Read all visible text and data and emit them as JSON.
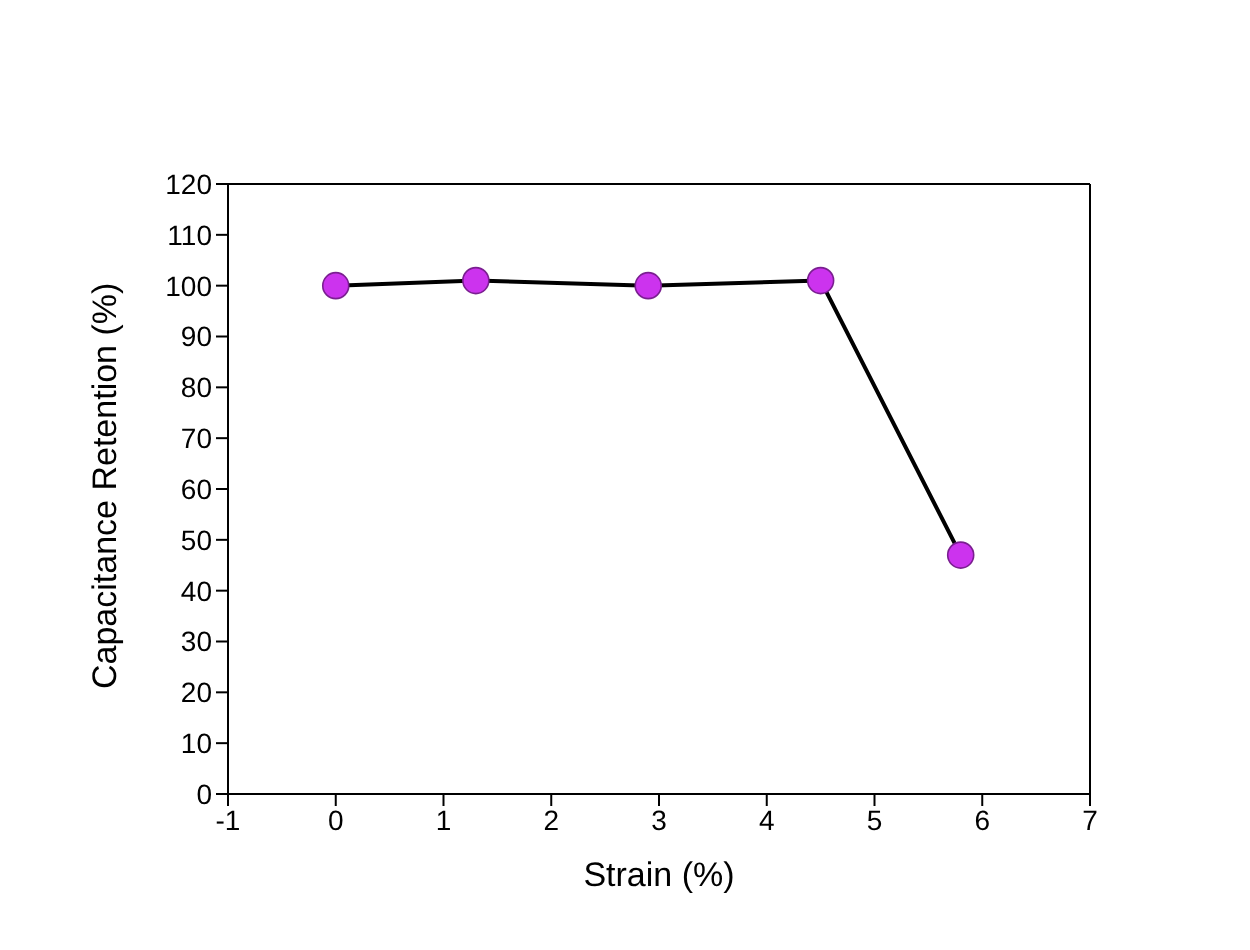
{
  "chart_data": {
    "type": "line",
    "xlabel": "Strain (%)",
    "ylabel": "Capacitance Retention (%)",
    "x": [
      0,
      1.3,
      2.9,
      4.5,
      5.8
    ],
    "series": [
      {
        "color": "#cc33ee",
        "values": [
          100,
          101,
          100,
          101,
          47
        ]
      }
    ],
    "xlim": [
      -1,
      7
    ],
    "xticks": [
      -1,
      0,
      1,
      2,
      3,
      4,
      5,
      6,
      7
    ],
    "ylim": [
      0,
      120
    ],
    "yticks": [
      0,
      10,
      20,
      30,
      40,
      50,
      60,
      70,
      80,
      90,
      100,
      110,
      120
    ],
    "marker": "circle",
    "line_style": "solid",
    "grid": false,
    "legend": false
  }
}
